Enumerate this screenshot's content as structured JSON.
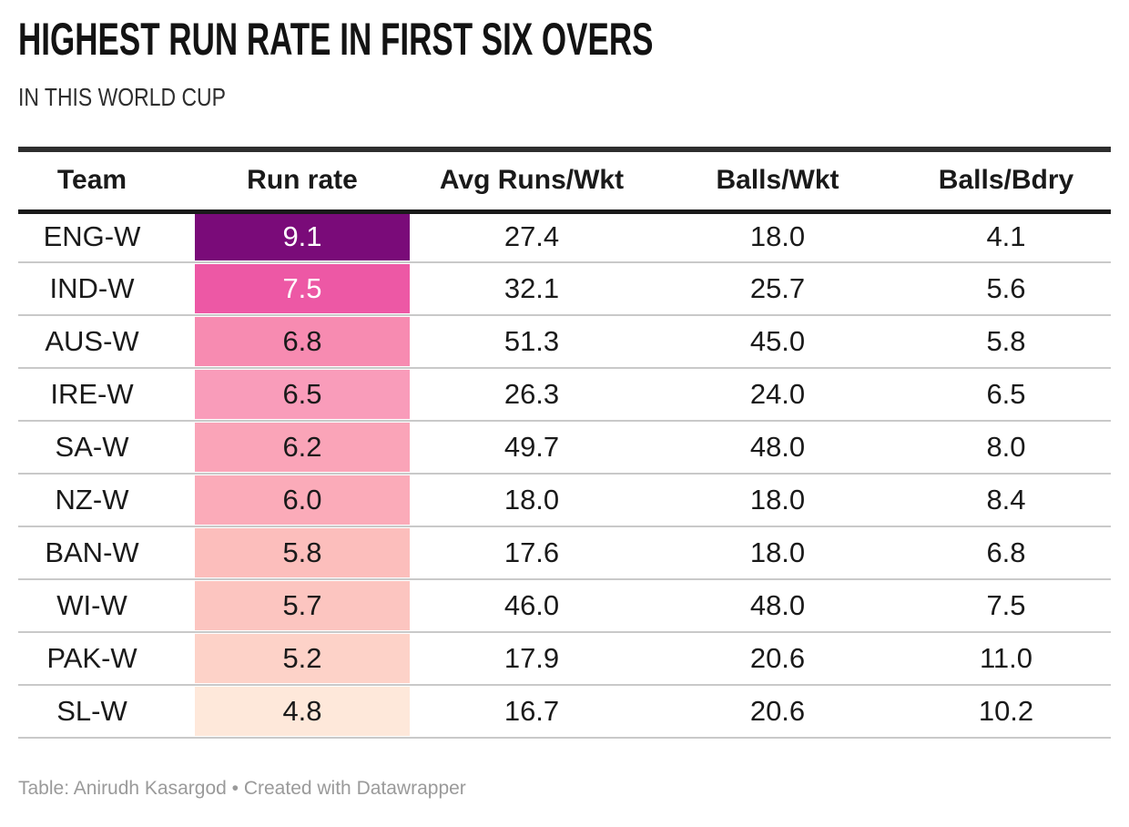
{
  "header": {
    "title": "HIGHEST RUN RATE IN FIRST SIX OVERS",
    "subtitle": "IN THIS WORLD CUP"
  },
  "table": {
    "columns": [
      "Team",
      "Run rate",
      "Avg Runs/Wkt",
      "Balls/Wkt",
      "Balls/Bdry"
    ],
    "rows": [
      {
        "team": "ENG-W",
        "run_rate": "9.1",
        "avg_runs_wkt": "27.4",
        "balls_wkt": "18.0",
        "balls_bdry": "4.1",
        "run_rate_bg": "#7a0b79",
        "run_rate_fg": "#ffffff"
      },
      {
        "team": "IND-W",
        "run_rate": "7.5",
        "avg_runs_wkt": "32.1",
        "balls_wkt": "25.7",
        "balls_bdry": "5.6",
        "run_rate_bg": "#ed58a5",
        "run_rate_fg": "#ffffff"
      },
      {
        "team": "AUS-W",
        "run_rate": "6.8",
        "avg_runs_wkt": "51.3",
        "balls_wkt": "45.0",
        "balls_bdry": "5.8",
        "run_rate_bg": "#f78bb1",
        "run_rate_fg": "#1a1a1a"
      },
      {
        "team": "IRE-W",
        "run_rate": "6.5",
        "avg_runs_wkt": "26.3",
        "balls_wkt": "24.0",
        "balls_bdry": "6.5",
        "run_rate_bg": "#f99cba",
        "run_rate_fg": "#1a1a1a"
      },
      {
        "team": "SA-W",
        "run_rate": "6.2",
        "avg_runs_wkt": "49.7",
        "balls_wkt": "48.0",
        "balls_bdry": "8.0",
        "run_rate_bg": "#faa4b8",
        "run_rate_fg": "#1a1a1a"
      },
      {
        "team": "NZ-W",
        "run_rate": "6.0",
        "avg_runs_wkt": "18.0",
        "balls_wkt": "18.0",
        "balls_bdry": "8.4",
        "run_rate_bg": "#fbabb9",
        "run_rate_fg": "#1a1a1a"
      },
      {
        "team": "BAN-W",
        "run_rate": "5.8",
        "avg_runs_wkt": "17.6",
        "balls_wkt": "18.0",
        "balls_bdry": "6.8",
        "run_rate_bg": "#fcbebc",
        "run_rate_fg": "#1a1a1a"
      },
      {
        "team": "WI-W",
        "run_rate": "5.7",
        "avg_runs_wkt": "46.0",
        "balls_wkt": "48.0",
        "balls_bdry": "7.5",
        "run_rate_bg": "#fcc5c0",
        "run_rate_fg": "#1a1a1a"
      },
      {
        "team": "PAK-W",
        "run_rate": "5.2",
        "avg_runs_wkt": "17.9",
        "balls_wkt": "20.6",
        "balls_bdry": "11.0",
        "run_rate_bg": "#fdd2c8",
        "run_rate_fg": "#1a1a1a"
      },
      {
        "team": "SL-W",
        "run_rate": "4.8",
        "avg_runs_wkt": "16.7",
        "balls_wkt": "20.6",
        "balls_bdry": "10.2",
        "run_rate_bg": "#fee8da",
        "run_rate_fg": "#1a1a1a"
      }
    ]
  },
  "footer": {
    "text": "Table: Anirudh Kasargod • Created with Datawrapper"
  },
  "colors": {
    "heatmap_high": "#7a0b79",
    "heatmap_low": "#fee8da",
    "rule_dark": "#1a1a1a",
    "row_separator": "#c9c9c9",
    "footer_text": "#9a9a9a"
  },
  "chart_data": {
    "type": "table",
    "title": "HIGHEST RUN RATE IN FIRST SIX OVERS",
    "subtitle": "IN THIS WORLD CUP",
    "columns": [
      "Team",
      "Run rate",
      "Avg Runs/Wkt",
      "Balls/Wkt",
      "Balls/Bdry"
    ],
    "rows": [
      [
        "ENG-W",
        9.1,
        27.4,
        18.0,
        4.1
      ],
      [
        "IND-W",
        7.5,
        32.1,
        25.7,
        5.6
      ],
      [
        "AUS-W",
        6.8,
        51.3,
        45.0,
        5.8
      ],
      [
        "IRE-W",
        6.5,
        26.3,
        24.0,
        6.5
      ],
      [
        "SA-W",
        6.2,
        49.7,
        48.0,
        8.0
      ],
      [
        "NZ-W",
        6.0,
        18.0,
        18.0,
        8.4
      ],
      [
        "BAN-W",
        5.8,
        17.6,
        18.0,
        6.8
      ],
      [
        "WI-W",
        5.7,
        46.0,
        48.0,
        7.5
      ],
      [
        "PAK-W",
        5.2,
        17.9,
        20.6,
        11.0
      ],
      [
        "SL-W",
        4.8,
        16.7,
        20.6,
        10.2
      ]
    ],
    "heatmap_column": "Run rate",
    "heatmap_range": [
      4.8,
      9.1
    ],
    "sort": "Run rate descending",
    "attribution": "Table: Anirudh Kasargod • Created with Datawrapper"
  }
}
